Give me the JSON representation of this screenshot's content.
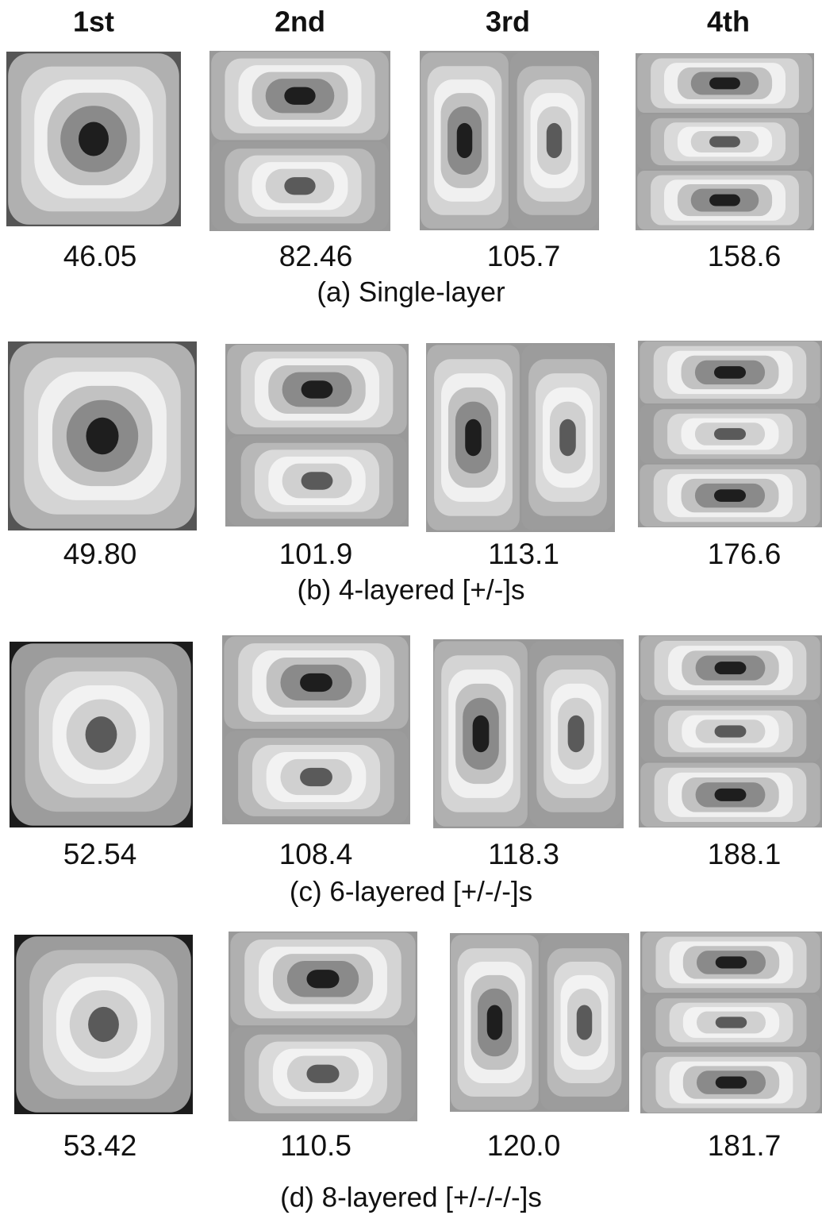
{
  "headers": [
    "1st",
    "2nd",
    "3rd",
    "4th"
  ],
  "rows": [
    {
      "values": [
        "46.05",
        "82.46",
        "105.7",
        "158.6"
      ],
      "caption": "(a) Single-layer"
    },
    {
      "values": [
        "49.80",
        "101.9",
        "113.1",
        "176.6"
      ],
      "caption": "(b) 4-layered [+/-]s"
    },
    {
      "values": [
        "52.54",
        "108.4",
        "118.3",
        "188.1"
      ],
      "caption": "(c) 6-layered [+/-/-]s"
    },
    {
      "values": [
        "53.42",
        "110.5",
        "120.0",
        "181.7"
      ],
      "caption": "(d) 8-layered [+/-/-/-]s"
    }
  ]
}
